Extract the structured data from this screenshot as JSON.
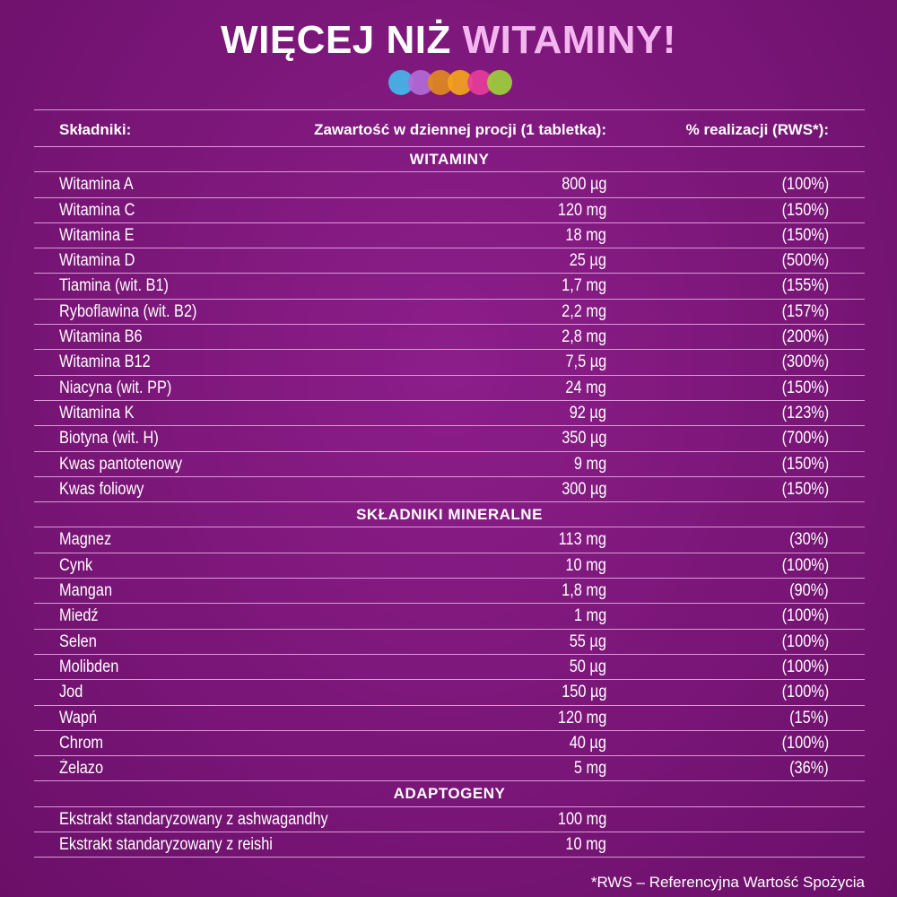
{
  "title": {
    "part1": "WIĘCEJ NIŻ",
    "part2": "WITAMINY!"
  },
  "dot_colors": [
    "#43b7e9",
    "#b26ad6",
    "#e0891f",
    "#f5a31c",
    "#e63c9a",
    "#9ccf3a"
  ],
  "header": {
    "col1": "Składniki:",
    "col2": "Zawartość w dziennej procji (1 tabletka):",
    "col3": "% realizacji (RWS*):"
  },
  "sections": [
    {
      "title": "WITAMINY",
      "rows": [
        {
          "name": "Witamina A",
          "amount": "800 µg",
          "pct": "(100%)"
        },
        {
          "name": "Witamina C",
          "amount": "120 mg",
          "pct": "(150%)"
        },
        {
          "name": "Witamina E",
          "amount": "18 mg",
          "pct": "(150%)"
        },
        {
          "name": "Witamina D",
          "amount": "25 µg",
          "pct": "(500%)"
        },
        {
          "name": "Tiamina (wit. B1)",
          "amount": "1,7 mg",
          "pct": "(155%)"
        },
        {
          "name": "Ryboflawina (wit. B2)",
          "amount": "2,2 mg",
          "pct": "(157%)"
        },
        {
          "name": "Witamina B6",
          "amount": "2,8 mg",
          "pct": "(200%)"
        },
        {
          "name": "Witamina B12",
          "amount": "7,5 µg",
          "pct": "(300%)"
        },
        {
          "name": "Niacyna (wit. PP)",
          "amount": "24 mg",
          "pct": "(150%)"
        },
        {
          "name": "Witamina K",
          "amount": "92 µg",
          "pct": "(123%)"
        },
        {
          "name": "Biotyna (wit. H)",
          "amount": "350 µg",
          "pct": "(700%)"
        },
        {
          "name": "Kwas pantotenowy",
          "amount": "9 mg",
          "pct": "(150%)"
        },
        {
          "name": "Kwas foliowy",
          "amount": "300 µg",
          "pct": "(150%)"
        }
      ]
    },
    {
      "title": "SKŁADNIKI  MINERALNE",
      "rows": [
        {
          "name": "Magnez",
          "amount": "113 mg",
          "pct": "(30%)"
        },
        {
          "name": "Cynk",
          "amount": "10 mg",
          "pct": "(100%)"
        },
        {
          "name": "Mangan",
          "amount": "1,8 mg",
          "pct": "(90%)"
        },
        {
          "name": "Miedź",
          "amount": "1 mg",
          "pct": "(100%)"
        },
        {
          "name": "Selen",
          "amount": "55 µg",
          "pct": "(100%)"
        },
        {
          "name": "Molibden",
          "amount": "50 µg",
          "pct": "(100%)"
        },
        {
          "name": "Jod",
          "amount": "150 µg",
          "pct": "(100%)"
        },
        {
          "name": "Wapń",
          "amount": "120 mg",
          "pct": "(15%)"
        },
        {
          "name": "Chrom",
          "amount": "40 µg",
          "pct": "(100%)"
        },
        {
          "name": "Żelazo",
          "amount": "5 mg",
          "pct": "(36%)"
        }
      ]
    },
    {
      "title": "ADAPTOGENY",
      "rows": [
        {
          "name": "Ekstrakt standaryzowany z ashwagandhy",
          "amount": "100 mg",
          "pct": ""
        },
        {
          "name": "Ekstrakt standaryzowany z reishi",
          "amount": "10 mg",
          "pct": ""
        }
      ]
    }
  ],
  "footnote": "*RWS – Referencyjna Wartość Spożycia"
}
